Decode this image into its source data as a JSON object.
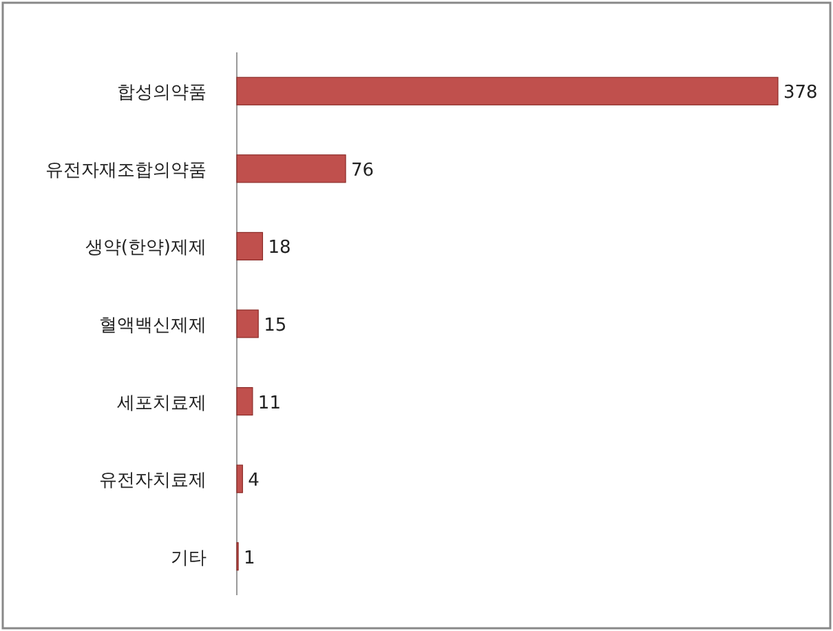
{
  "chart_data": {
    "type": "bar",
    "orientation": "horizontal",
    "categories": [
      "합성의약품",
      "유전자재조합의약품",
      "생약(한약)제제",
      "혈액백신제제",
      "세포치료제",
      "유전자치료제",
      "기타"
    ],
    "values": [
      378,
      76,
      18,
      15,
      11,
      4,
      1
    ],
    "color": "#c0504d",
    "data_labels": true
  }
}
